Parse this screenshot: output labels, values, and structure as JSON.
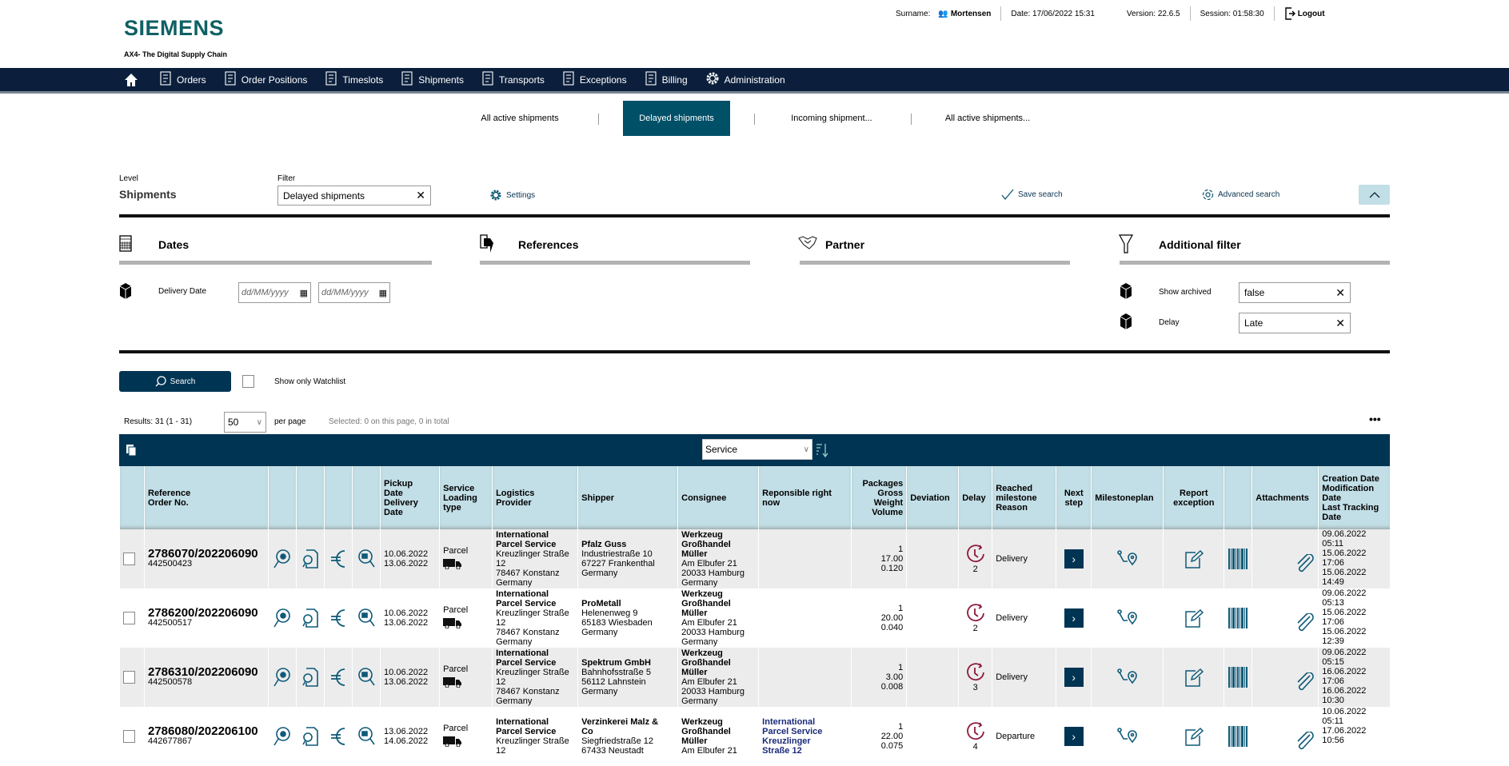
{
  "header": {
    "logo": "SIEMENS",
    "tagline": "AX4- The Digital Supply Chain",
    "surname_label": "Surname:",
    "surname": "Mortensen",
    "date": "Date: 17/06/2022 15:31",
    "version": "Version: 22.6.5",
    "session": "Session:  01:58:30",
    "logout": "Logout"
  },
  "nav": [
    {
      "label": "Orders",
      "icon": "orders-icon"
    },
    {
      "label": "Order Positions",
      "icon": "order-positions-icon"
    },
    {
      "label": "Timeslots",
      "icon": "timeslots-icon"
    },
    {
      "label": "Shipments",
      "icon": "shipments-icon"
    },
    {
      "label": "Transports",
      "icon": "transports-icon"
    },
    {
      "label": "Exceptions",
      "icon": "exceptions-icon"
    },
    {
      "label": "Billing",
      "icon": "billing-icon"
    },
    {
      "label": "Administration",
      "icon": "gear-icon"
    }
  ],
  "tabs": [
    "All active shipments",
    "Delayed shipments",
    "Incoming shipment...",
    "All active shipments..."
  ],
  "search": {
    "level_label": "Level",
    "level": "Shipments",
    "filter_label": "Filter",
    "filter_value": "Delayed shipments",
    "settings": "Settings",
    "save": "Save search",
    "advanced": "Advanced search"
  },
  "sections": {
    "dates": "Dates",
    "references": "References",
    "partner": "Partner",
    "additional": "Additional filter"
  },
  "fields": {
    "delivery_date": "Delivery Date",
    "date_placeholder": "dd/MM/yyyy",
    "show_archived": "Show archived",
    "show_archived_value": "false",
    "delay": "Delay",
    "delay_value": "Late"
  },
  "actions": {
    "search": "Search",
    "watchlist": "Show only Watchlist"
  },
  "results": {
    "summary": "Results: 31 (1 - 31)",
    "per_page_value": "50",
    "per_page": "per page",
    "selected": "Selected: 0 on this page, 0 in total",
    "group_select": "Service"
  },
  "columns": [
    "",
    "Reference\nOrder No.",
    "",
    "",
    "",
    "",
    "Pickup\nDate\nDelivery\nDate",
    "Service\nLoading\ntype",
    "Logistics\nProvider",
    "Shipper",
    "Consignee",
    "Reponsible right\nnow",
    "Packages\nGross\nWeight\nVolume",
    "Deviation",
    "Delay",
    "Reached\nmilestone\nReason",
    "Next\nstep",
    "Milestoneplan",
    "Report\nexception",
    "",
    "Attachments",
    "Creation Date\nModification\nDate\nLast Tracking\nDate"
  ],
  "colors": {
    "nav": "#0b1f3c",
    "accent": "#005068",
    "toolbar": "#003453",
    "header": "#c2dee6",
    "icon": "#0e5a78",
    "delay": "#8b1a3a"
  },
  "rows": [
    {
      "ref": "2786070/202206090",
      "order": "442500423",
      "dates": [
        "10.06.2022",
        "13.06.2022"
      ],
      "service": "Parcel",
      "logistics": {
        "name": [
          "International",
          "Parcel Service"
        ],
        "addr": [
          "Kreuzlinger Straße",
          "12",
          "78467 Konstanz",
          "Germany"
        ]
      },
      "shipper": {
        "name": [
          "Pfalz Guss"
        ],
        "addr": [
          "Industriestraße 10",
          "67227 Frankenthal",
          "Germany"
        ]
      },
      "consignee": {
        "name": [
          "Werkzeug",
          "Großhandel",
          "Müller"
        ],
        "addr": [
          "Am Elbufer 21",
          "20033 Hamburg",
          "Germany"
        ]
      },
      "responsible": null,
      "packages": [
        "1",
        "17.00",
        "0.120"
      ],
      "delay": "2",
      "milestone": "Delivery",
      "timestamps": [
        "09.06.2022",
        "05:11",
        "15.06.2022",
        "17:06",
        "15.06.2022",
        "14:49"
      ]
    },
    {
      "ref": "2786200/202206090",
      "order": "442500517",
      "dates": [
        "10.06.2022",
        "13.06.2022"
      ],
      "service": "Parcel",
      "logistics": {
        "name": [
          "International",
          "Parcel Service"
        ],
        "addr": [
          "Kreuzlinger Straße",
          "12",
          "78467 Konstanz",
          "Germany"
        ]
      },
      "shipper": {
        "name": [
          "ProMetall"
        ],
        "addr": [
          "Helenenweg 9",
          "65183 Wiesbaden",
          "Germany"
        ]
      },
      "consignee": {
        "name": [
          "Werkzeug",
          "Großhandel",
          "Müller"
        ],
        "addr": [
          "Am Elbufer 21",
          "20033 Hamburg",
          "Germany"
        ]
      },
      "responsible": null,
      "packages": [
        "1",
        "20.00",
        "0.040"
      ],
      "delay": "2",
      "milestone": "Delivery",
      "timestamps": [
        "09.06.2022",
        "05:13",
        "15.06.2022",
        "17:06",
        "15.06.2022",
        "12:39"
      ]
    },
    {
      "ref": "2786310/202206090",
      "order": "442500578",
      "dates": [
        "10.06.2022",
        "13.06.2022"
      ],
      "service": "Parcel",
      "logistics": {
        "name": [
          "International",
          "Parcel Service"
        ],
        "addr": [
          "Kreuzlinger Straße",
          "12",
          "78467 Konstanz",
          "Germany"
        ]
      },
      "shipper": {
        "name": [
          "Spektrum GmbH"
        ],
        "addr": [
          "Bahnhofsstraße 5",
          "56112 Lahnstein",
          "Germany"
        ]
      },
      "consignee": {
        "name": [
          "Werkzeug",
          "Großhandel",
          "Müller"
        ],
        "addr": [
          "Am Elbufer 21",
          "20033 Hamburg",
          "Germany"
        ]
      },
      "responsible": null,
      "packages": [
        "1",
        "3.00",
        "0.008"
      ],
      "delay": "3",
      "milestone": "Delivery",
      "timestamps": [
        "09.06.2022",
        "05:15",
        "16.06.2022",
        "17:06",
        "16.06.2022",
        "10:30"
      ]
    },
    {
      "ref": "2786080/202206100",
      "order": "442677867",
      "dates": [
        "13.06.2022",
        "14.06.2022"
      ],
      "service": "Parcel",
      "logistics": {
        "name": [
          "International",
          "Parcel Service"
        ],
        "addr": [
          "Kreuzlinger Straße",
          "12"
        ]
      },
      "shipper": {
        "name": [
          "Verzinkerei Malz &",
          "Co"
        ],
        "addr": [
          "Siegfriedstraße 12",
          "67433 Neustadt"
        ]
      },
      "consignee": {
        "name": [
          "Werkzeug",
          "Großhandel",
          "Müller"
        ],
        "addr": [
          "Am Elbufer 21"
        ]
      },
      "responsible": {
        "name": [
          "International",
          "Parcel Service"
        ],
        "addr": [
          "Kreuzlinger",
          "Straße 12"
        ]
      },
      "packages": [
        "1",
        "22.00",
        "0.075"
      ],
      "delay": "4",
      "milestone": "Departure",
      "timestamps": [
        "10.06.2022",
        "05:11",
        "17.06.2022",
        "10:56"
      ]
    }
  ]
}
